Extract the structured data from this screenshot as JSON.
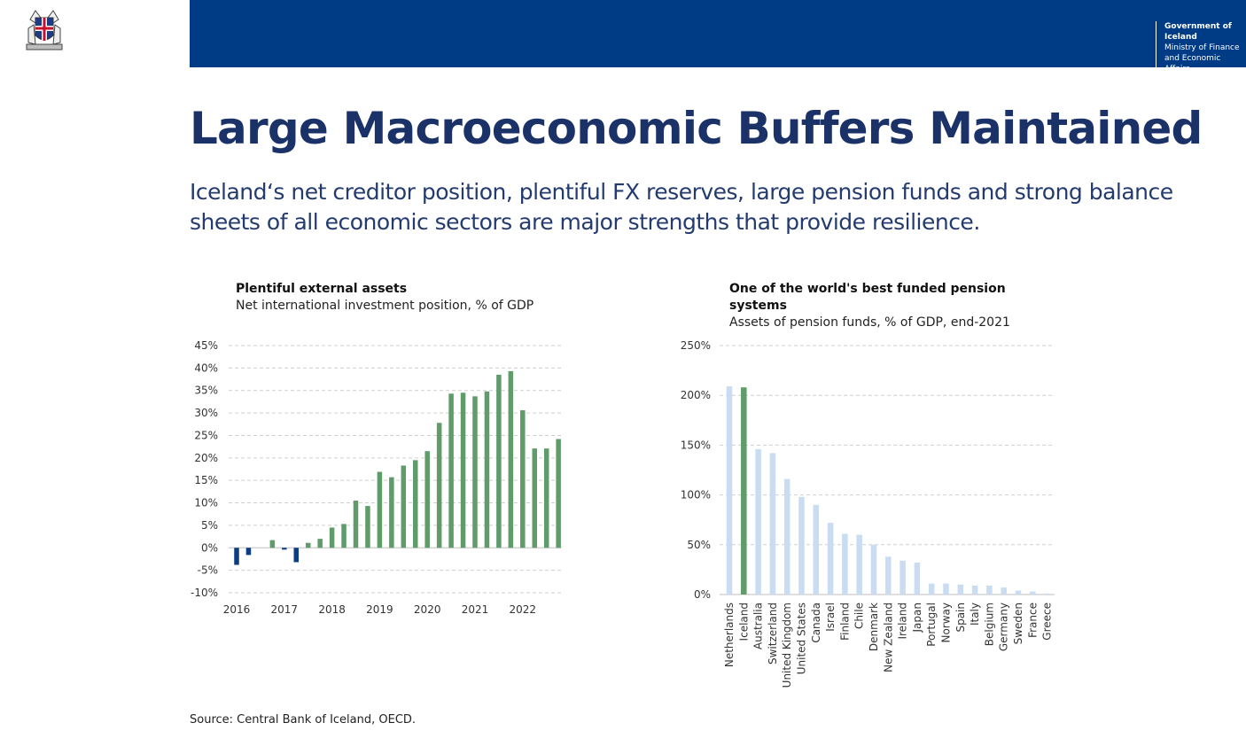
{
  "header": {
    "org": "Government of Iceland",
    "ministry": "Ministry of Finance and Economic Affairs"
  },
  "page": {
    "title": "Large Macroeconomic Buffers Maintained",
    "subtitle": "Iceland‘s net creditor position, plentiful FX reserves, large pension funds and strong balance sheets of all economic sectors are major strengths that provide resilience.",
    "source": "Source: Central Bank of Iceland, OECD."
  },
  "colors": {
    "brand": "#003c85",
    "title": "#1b3268",
    "positive_bar": "#5f9c6a",
    "negative_bar": "#0d3d80",
    "pension_bar": "#c9dcf2",
    "iceland_bar": "#5f9c6a"
  },
  "chart_data": [
    {
      "type": "bar",
      "title": "Plentiful external assets",
      "subtitle": "Net international investment position, % of GDP",
      "x_tick_labels": [
        "2016",
        "2017",
        "2018",
        "2019",
        "2020",
        "2021",
        "2022"
      ],
      "y_tick_labels": [
        "45%",
        "40%",
        "35%",
        "30%",
        "25%",
        "20%",
        "15%",
        "10%",
        "5%",
        "0%",
        "-5%",
        "-10%"
      ],
      "ylim": [
        -10,
        45
      ],
      "grid": true,
      "values": [
        -3.8,
        -1.6,
        0,
        1.7,
        -0.4,
        -3.2,
        1.1,
        2.0,
        4.5,
        5.3,
        10.5,
        9.3,
        16.9,
        15.7,
        18.3,
        19.5,
        21.5,
        27.8,
        34.3,
        34.5,
        33.7,
        34.8,
        38.5,
        39.3,
        30.6,
        22.1,
        22.1,
        24.2
      ]
    },
    {
      "type": "bar",
      "title": "One of the world's best funded pension systems",
      "subtitle": "Assets of pension funds, % of GDP, end-2021",
      "categories": [
        "Netherlands",
        "Iceland",
        "Australia",
        "Switzerland",
        "United Kingdom",
        "United States",
        "Canada",
        "Israel",
        "Finland",
        "Chile",
        "Denmark",
        "New Zealand",
        "Ireland",
        "Japan",
        "Portugal",
        "Norway",
        "Spain",
        "Italy",
        "Belgium",
        "Germany",
        "Sweden",
        "France",
        "Greece"
      ],
      "values": [
        209,
        208,
        146,
        142,
        116,
        98,
        90,
        72,
        61,
        60,
        50,
        38,
        34,
        32,
        11,
        11,
        10,
        9,
        9,
        7,
        4,
        3,
        1
      ],
      "highlight": "Iceland",
      "y_tick_labels": [
        "250%",
        "200%",
        "150%",
        "100%",
        "50%",
        "0%"
      ],
      "ylim": [
        0,
        250
      ],
      "grid": true
    }
  ]
}
